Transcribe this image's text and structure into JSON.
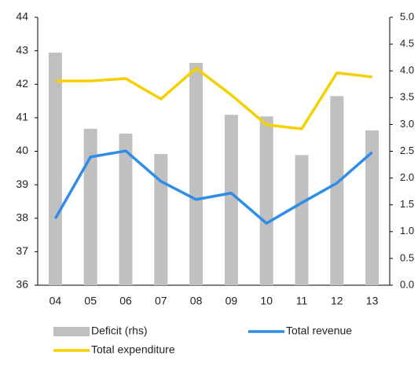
{
  "chart_data": {
    "type": "bar-line",
    "categories": [
      "04",
      "05",
      "06",
      "07",
      "08",
      "09",
      "10",
      "11",
      "12",
      "13"
    ],
    "series": [
      {
        "name": "Deficit (rhs)",
        "type": "bar",
        "axis": "y2",
        "color": "#c0c0c0",
        "values": [
          4.34,
          2.92,
          2.83,
          2.45,
          4.15,
          3.18,
          3.15,
          2.43,
          3.53,
          2.89
        ]
      },
      {
        "name": "Total revenue",
        "type": "line",
        "color": "#2e8de6",
        "values": [
          37.99,
          39.83,
          40.01,
          39.1,
          38.56,
          38.75,
          37.85,
          38.46,
          39.05,
          39.97
        ]
      },
      {
        "name": "Total expenditure",
        "type": "line",
        "color": "#f5d000",
        "values": [
          42.1,
          42.1,
          42.17,
          41.56,
          42.48,
          41.68,
          40.79,
          40.67,
          42.34,
          42.22
        ]
      }
    ],
    "ylim": [
      36,
      44
    ],
    "yticks": [
      36,
      37,
      38,
      39,
      40,
      41,
      42,
      43,
      44
    ],
    "y2lim": [
      0,
      5
    ],
    "y2ticks": [
      {
        "value": 0,
        "label": "0.0"
      },
      {
        "value": 0.5,
        "label": "0.5"
      },
      {
        "value": 1,
        "label": "1.0"
      },
      {
        "value": 1.5,
        "label": "1.5"
      },
      {
        "value": 2,
        "label": "2.0"
      },
      {
        "value": 2.5,
        "label": "2.5"
      },
      {
        "value": 3,
        "label": "3.0"
      },
      {
        "value": 3.5,
        "label": "3.5"
      },
      {
        "value": 4,
        "label": "4.0"
      },
      {
        "value": 4.5,
        "label": "4.5"
      },
      {
        "value": 5,
        "label": "5.0"
      }
    ]
  }
}
